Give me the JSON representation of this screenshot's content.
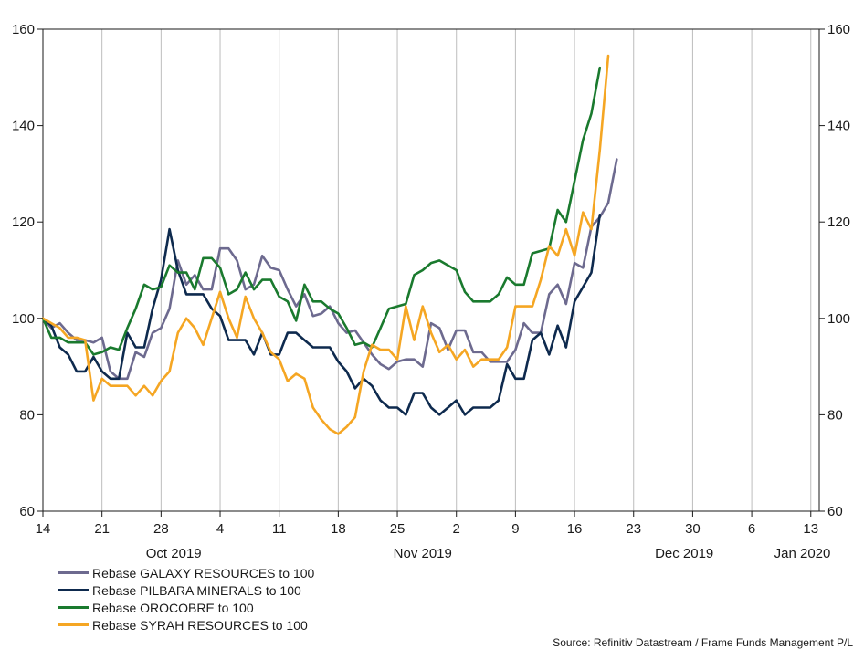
{
  "chart_data": {
    "type": "line",
    "x_tick_labels": [
      "14",
      "21",
      "28",
      "4",
      "11",
      "18",
      "25",
      "2",
      "9",
      "16",
      "23",
      "30",
      "6",
      "13"
    ],
    "month_labels": [
      "Oct 2019",
      "Nov 2019",
      "Dec 2019",
      "Jan 2020"
    ],
    "y_ticks": [
      60,
      80,
      100,
      120,
      140,
      160
    ],
    "ylim": [
      60,
      160
    ],
    "x_range_days": [
      0,
      92
    ],
    "grid": "vertical",
    "legend_position": "bottom-left",
    "series": [
      {
        "name": "Rebase GALAXY RESOURCES to 100",
        "color": "#6d6a8f",
        "points": [
          [
            0,
            100
          ],
          [
            1,
            98
          ],
          [
            2,
            99
          ],
          [
            3,
            97
          ],
          [
            4,
            95.5
          ],
          [
            5,
            95.5
          ],
          [
            6,
            95
          ],
          [
            7,
            96
          ],
          [
            8,
            89
          ],
          [
            9,
            87.5
          ],
          [
            10,
            87.5
          ],
          [
            11,
            93
          ],
          [
            12,
            92
          ],
          [
            13,
            97
          ],
          [
            14,
            98
          ],
          [
            15,
            102
          ],
          [
            16,
            112
          ],
          [
            17,
            107
          ],
          [
            18,
            109
          ],
          [
            19,
            106
          ],
          [
            20,
            106
          ],
          [
            21,
            114.5
          ],
          [
            22,
            114.5
          ],
          [
            23,
            112
          ],
          [
            24,
            106
          ],
          [
            25,
            107
          ],
          [
            26,
            113
          ],
          [
            27,
            110.5
          ],
          [
            28,
            110
          ],
          [
            29,
            106
          ],
          [
            30,
            102.5
          ],
          [
            31,
            105
          ],
          [
            32,
            100.5
          ],
          [
            33,
            101
          ],
          [
            34,
            102.5
          ],
          [
            35,
            99
          ],
          [
            36,
            97
          ],
          [
            37,
            97.5
          ],
          [
            38,
            95
          ],
          [
            39,
            92.5
          ],
          [
            40,
            90.5
          ],
          [
            41,
            89.5
          ],
          [
            42,
            91
          ],
          [
            43,
            91.5
          ],
          [
            44,
            91.5
          ],
          [
            45,
            90
          ],
          [
            46,
            99
          ],
          [
            47,
            98
          ],
          [
            48,
            93.5
          ],
          [
            49,
            97.5
          ],
          [
            50,
            97.5
          ],
          [
            51,
            93
          ],
          [
            52,
            93
          ],
          [
            53,
            91
          ],
          [
            54,
            91
          ],
          [
            55,
            91
          ],
          [
            56,
            93.5
          ],
          [
            57,
            99
          ],
          [
            58,
            97
          ],
          [
            59,
            97
          ],
          [
            60,
            105
          ],
          [
            61,
            107
          ],
          [
            62,
            103
          ],
          [
            63,
            111.5
          ],
          [
            64,
            110.5
          ],
          [
            65,
            119
          ],
          [
            66,
            121
          ],
          [
            67,
            124
          ],
          [
            68,
            133
          ]
        ]
      },
      {
        "name": "Rebase PILBARA MINERALS to 100",
        "color": "#0e2a4e",
        "points": [
          [
            0,
            100
          ],
          [
            1,
            98.5
          ],
          [
            2,
            94
          ],
          [
            3,
            92.5
          ],
          [
            4,
            89
          ],
          [
            5,
            89
          ],
          [
            6,
            92
          ],
          [
            7,
            89
          ],
          [
            8,
            87.5
          ],
          [
            9,
            87.5
          ],
          [
            10,
            97
          ],
          [
            11,
            94
          ],
          [
            12,
            94
          ],
          [
            13,
            102
          ],
          [
            14,
            108
          ],
          [
            15,
            118.5
          ],
          [
            16,
            110
          ],
          [
            17,
            105
          ],
          [
            18,
            105
          ],
          [
            19,
            105
          ],
          [
            20,
            102
          ],
          [
            21,
            100.5
          ],
          [
            22,
            95.5
          ],
          [
            23,
            95.5
          ],
          [
            24,
            95.5
          ],
          [
            25,
            92.5
          ],
          [
            26,
            97
          ],
          [
            27,
            92.5
          ],
          [
            28,
            92.5
          ],
          [
            29,
            97
          ],
          [
            30,
            97
          ],
          [
            31,
            95.5
          ],
          [
            32,
            94
          ],
          [
            33,
            94
          ],
          [
            34,
            94
          ],
          [
            35,
            91
          ],
          [
            36,
            89
          ],
          [
            37,
            85.5
          ],
          [
            38,
            87.5
          ],
          [
            39,
            86
          ],
          [
            40,
            83
          ],
          [
            41,
            81.5
          ],
          [
            42,
            81.5
          ],
          [
            43,
            80
          ],
          [
            44,
            84.5
          ],
          [
            45,
            84.5
          ],
          [
            46,
            81.5
          ],
          [
            47,
            80
          ],
          [
            48,
            81.5
          ],
          [
            49,
            83
          ],
          [
            50,
            80
          ],
          [
            51,
            81.5
          ],
          [
            52,
            81.5
          ],
          [
            53,
            81.5
          ],
          [
            54,
            83
          ],
          [
            55,
            90.5
          ],
          [
            56,
            87.5
          ],
          [
            57,
            87.5
          ],
          [
            58,
            95.5
          ],
          [
            59,
            97
          ],
          [
            60,
            92.5
          ],
          [
            61,
            98.5
          ],
          [
            62,
            94
          ],
          [
            63,
            103.5
          ],
          [
            64,
            106.5
          ],
          [
            65,
            109.5
          ],
          [
            66,
            121.5
          ]
        ]
      },
      {
        "name": "Rebase OROCOBRE to 100",
        "color": "#1a7a2e",
        "points": [
          [
            0,
            100
          ],
          [
            1,
            96
          ],
          [
            2,
            96
          ],
          [
            3,
            95
          ],
          [
            4,
            95
          ],
          [
            5,
            95
          ],
          [
            6,
            92.5
          ],
          [
            7,
            93
          ],
          [
            8,
            94
          ],
          [
            9,
            93.5
          ],
          [
            10,
            98
          ],
          [
            11,
            102
          ],
          [
            12,
            107
          ],
          [
            13,
            106
          ],
          [
            14,
            106.5
          ],
          [
            15,
            111
          ],
          [
            16,
            109.5
          ],
          [
            17,
            109.5
          ],
          [
            18,
            106
          ],
          [
            19,
            112.5
          ],
          [
            20,
            112.5
          ],
          [
            21,
            110.5
          ],
          [
            22,
            105
          ],
          [
            23,
            106
          ],
          [
            24,
            109.5
          ],
          [
            25,
            106
          ],
          [
            26,
            108
          ],
          [
            27,
            108
          ],
          [
            28,
            104.5
          ],
          [
            29,
            103.5
          ],
          [
            30,
            99.5
          ],
          [
            31,
            107
          ],
          [
            32,
            103.5
          ],
          [
            33,
            103.5
          ],
          [
            34,
            102
          ],
          [
            35,
            101
          ],
          [
            36,
            98
          ],
          [
            37,
            94.5
          ],
          [
            38,
            95
          ],
          [
            39,
            94
          ],
          [
            40,
            98
          ],
          [
            41,
            102
          ],
          [
            42,
            102.5
          ],
          [
            43,
            103
          ],
          [
            44,
            109
          ],
          [
            45,
            110
          ],
          [
            46,
            111.5
          ],
          [
            47,
            112
          ],
          [
            48,
            111
          ],
          [
            49,
            110
          ],
          [
            50,
            105.5
          ],
          [
            51,
            103.5
          ],
          [
            52,
            103.5
          ],
          [
            53,
            103.5
          ],
          [
            54,
            105
          ],
          [
            55,
            108.5
          ],
          [
            56,
            107
          ],
          [
            57,
            107
          ],
          [
            58,
            113.5
          ],
          [
            59,
            114
          ],
          [
            60,
            114.5
          ],
          [
            61,
            122.5
          ],
          [
            62,
            120
          ],
          [
            63,
            128.5
          ],
          [
            64,
            137
          ],
          [
            65,
            142.5
          ],
          [
            66,
            152
          ]
        ]
      },
      {
        "name": "Rebase SYRAH RESOURCES to 100",
        "color": "#f5a623",
        "points": [
          [
            0,
            100
          ],
          [
            1,
            99
          ],
          [
            2,
            98
          ],
          [
            3,
            96
          ],
          [
            4,
            96
          ],
          [
            5,
            95.5
          ],
          [
            6,
            83
          ],
          [
            7,
            87.5
          ],
          [
            8,
            86
          ],
          [
            9,
            86
          ],
          [
            10,
            86
          ],
          [
            11,
            84
          ],
          [
            12,
            86
          ],
          [
            13,
            84
          ],
          [
            14,
            87
          ],
          [
            15,
            89
          ],
          [
            16,
            97
          ],
          [
            17,
            100
          ],
          [
            18,
            98
          ],
          [
            19,
            94.5
          ],
          [
            20,
            100
          ],
          [
            21,
            105.5
          ],
          [
            22,
            100
          ],
          [
            23,
            96
          ],
          [
            24,
            104.5
          ],
          [
            25,
            100
          ],
          [
            26,
            97
          ],
          [
            27,
            93
          ],
          [
            28,
            91.5
          ],
          [
            29,
            87
          ],
          [
            30,
            88.5
          ],
          [
            31,
            87.5
          ],
          [
            32,
            81.5
          ],
          [
            33,
            79
          ],
          [
            34,
            77
          ],
          [
            35,
            76
          ],
          [
            36,
            77.5
          ],
          [
            37,
            79.5
          ],
          [
            38,
            89
          ],
          [
            39,
            94.5
          ],
          [
            40,
            93.5
          ],
          [
            41,
            93.5
          ],
          [
            42,
            91.5
          ],
          [
            43,
            102.5
          ],
          [
            44,
            95.5
          ],
          [
            45,
            102.5
          ],
          [
            46,
            97
          ],
          [
            47,
            93
          ],
          [
            48,
            94.5
          ],
          [
            49,
            91.5
          ],
          [
            50,
            93.5
          ],
          [
            51,
            90
          ],
          [
            52,
            91.5
          ],
          [
            53,
            91.5
          ],
          [
            54,
            91.5
          ],
          [
            55,
            94
          ],
          [
            56,
            102.5
          ],
          [
            57,
            102.5
          ],
          [
            58,
            102.5
          ],
          [
            59,
            108
          ],
          [
            60,
            115
          ],
          [
            61,
            113
          ],
          [
            62,
            118.5
          ],
          [
            63,
            113
          ],
          [
            64,
            122
          ],
          [
            65,
            118.5
          ],
          [
            66,
            135
          ],
          [
            67,
            154.5
          ]
        ]
      }
    ]
  },
  "source_text": "Source: Refinitiv Datastream / Frame Funds Management P/L"
}
